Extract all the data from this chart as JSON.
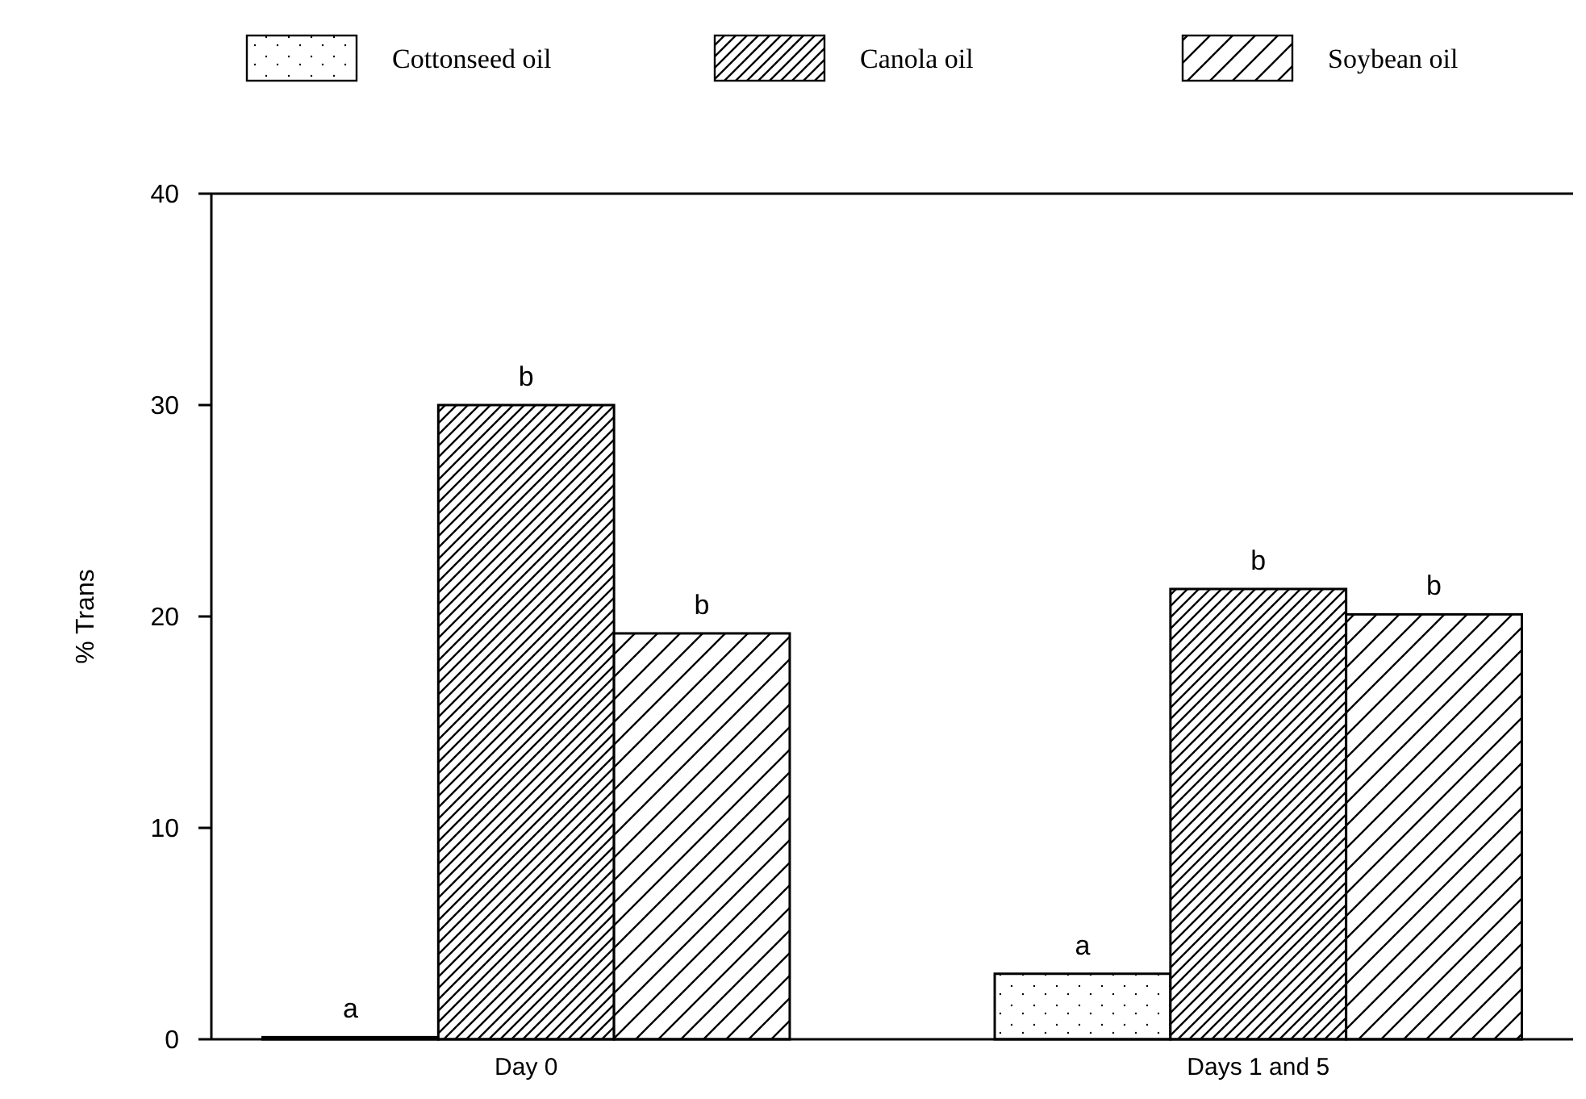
{
  "chart_data": {
    "type": "bar",
    "ylabel": "% Trans",
    "categories": [
      "Day 0",
      "Days 1 and 5"
    ],
    "series": [
      {
        "name": "Cottonseed oil",
        "color": "#000000",
        "values": [
          0.1,
          3.1
        ],
        "value_labels": [
          "a",
          "a"
        ]
      },
      {
        "name": "Canola oil",
        "color": "#000000",
        "values": [
          30,
          21.3
        ],
        "value_labels": [
          "b",
          "b"
        ]
      },
      {
        "name": "Soybean oil",
        "color": "#000000",
        "values": [
          19.2,
          20.1
        ],
        "value_labels": [
          "b",
          "b"
        ]
      }
    ],
    "ylim": [
      0,
      40
    ],
    "yticks": [
      0,
      10,
      20,
      30,
      40
    ],
    "grid": false,
    "legend": "top"
  }
}
